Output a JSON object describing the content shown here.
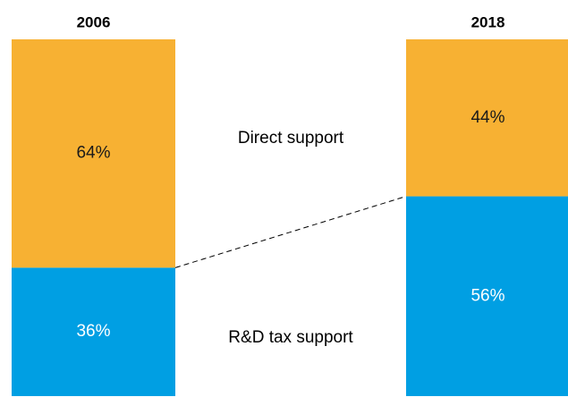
{
  "chart_data": {
    "type": "bar",
    "stacked": true,
    "categories": [
      "2006",
      "2018"
    ],
    "series": [
      {
        "name": "R&D tax support",
        "color": "#009fe3",
        "values": [
          36,
          56
        ],
        "value_labels": [
          "36%",
          "56%"
        ]
      },
      {
        "name": "Direct support",
        "color": "#f7b133",
        "values": [
          64,
          44
        ],
        "value_labels": [
          "64%",
          "44%"
        ]
      }
    ],
    "ylim": [
      0,
      100
    ]
  }
}
